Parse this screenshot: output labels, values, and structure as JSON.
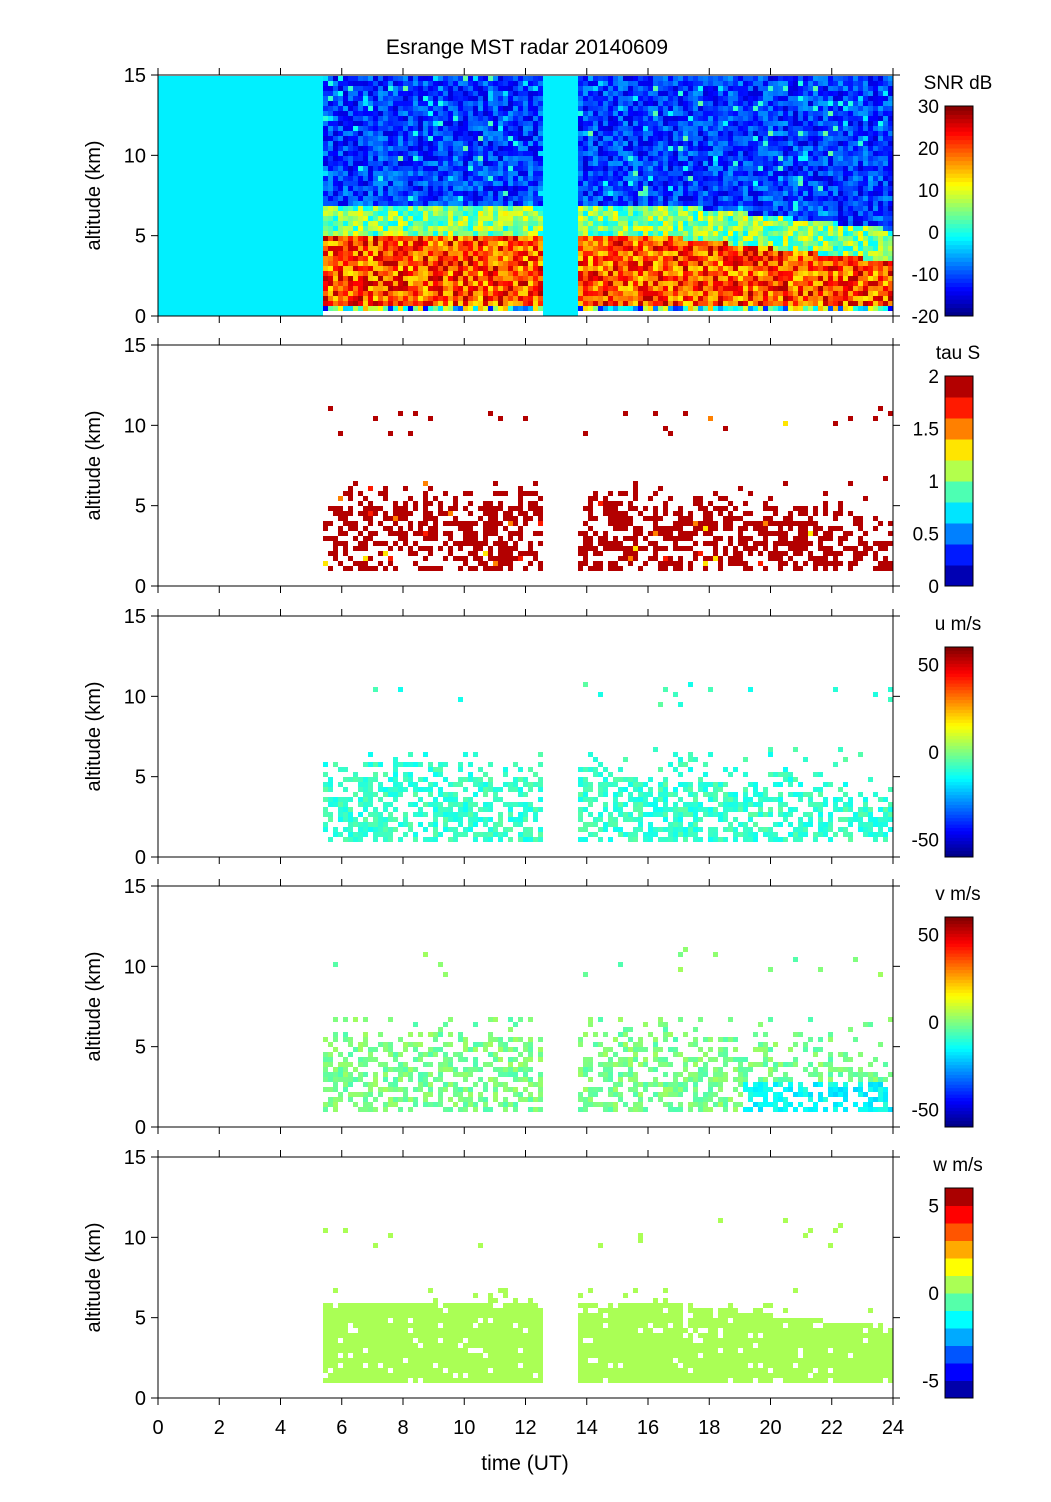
{
  "chart_data": {
    "type": "heatmap",
    "title": "Esrange MST radar 20140609",
    "xlabel": "time (UT)",
    "xlim": [
      0,
      24
    ],
    "xticks": [
      "0",
      "2",
      "4",
      "6",
      "8",
      "10",
      "12",
      "14",
      "16",
      "18",
      "20",
      "22",
      "24"
    ],
    "data_gaps_hours": [
      [
        0,
        5.3
      ],
      [
        12.5,
        13.6
      ]
    ],
    "panels": [
      {
        "name": "snr",
        "ylabel": "altitude (km)",
        "ylim": [
          0,
          15
        ],
        "yticks": [
          "0",
          "5",
          "10",
          "15"
        ],
        "colorbar": {
          "label": "SNR dB",
          "range": [
            -20,
            30
          ],
          "ticks": [
            "30",
            "20",
            "10",
            "0",
            "-10",
            "-20"
          ],
          "tick_values": [
            30,
            20,
            10,
            0,
            -10,
            -20
          ],
          "levels": 50
        },
        "description_values": {
          "strong_layer_km": [
            1,
            5
          ],
          "strong_layer_db": 22,
          "upper_db": -12,
          "gap_fill_db": -2
        }
      },
      {
        "name": "tau",
        "ylabel": "altitude (km)",
        "ylim": [
          0,
          15
        ],
        "yticks": [
          "0",
          "5",
          "10",
          "15"
        ],
        "colorbar": {
          "label": "tau S",
          "range": [
            0,
            2
          ],
          "ticks": [
            "2",
            "1.5",
            "1",
            "0.5",
            "0"
          ],
          "tick_values": [
            2,
            1.5,
            1,
            0.5,
            0
          ],
          "levels": 10
        },
        "description_values": {
          "typical": 2,
          "layer_km": [
            1,
            7
          ],
          "sparse_km": 11
        }
      },
      {
        "name": "u",
        "ylabel": "altitude (km)",
        "ylim": [
          0,
          15
        ],
        "yticks": [
          "0",
          "5",
          "10",
          "15"
        ],
        "colorbar": {
          "label": "u m/s",
          "range": [
            -60,
            60
          ],
          "ticks": [
            "50",
            "0",
            "-50"
          ],
          "tick_values": [
            50,
            0,
            -50
          ],
          "levels": 64
        },
        "description_values": {
          "typical": -12
        }
      },
      {
        "name": "v",
        "ylabel": "altitude (km)",
        "ylim": [
          0,
          15
        ],
        "yticks": [
          "0",
          "5",
          "10",
          "15"
        ],
        "colorbar": {
          "label": "v m/s",
          "range": [
            -60,
            60
          ],
          "ticks": [
            "50",
            "0",
            "-50"
          ],
          "tick_values": [
            50,
            0,
            -50
          ],
          "levels": 64
        },
        "description_values": {
          "typical": -4
        }
      },
      {
        "name": "w",
        "ylabel": "altitude (km)",
        "ylim": [
          0,
          15
        ],
        "yticks": [
          "0",
          "5",
          "10",
          "15"
        ],
        "colorbar": {
          "label": "w m/s",
          "range": [
            -6,
            6
          ],
          "ticks": [
            "5",
            "0",
            "-5"
          ],
          "tick_values": [
            5,
            0,
            -5
          ],
          "levels": 12
        },
        "description_values": {
          "typical": 0.5
        }
      }
    ]
  }
}
